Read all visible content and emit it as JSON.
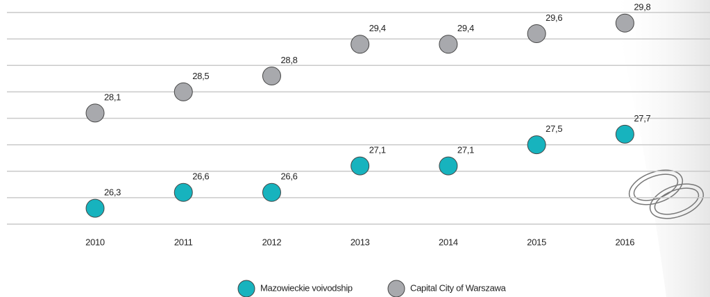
{
  "chart_data": {
    "type": "dot",
    "categories": [
      "2010",
      "2011",
      "2012",
      "2013",
      "2014",
      "2015",
      "2016"
    ],
    "series": [
      {
        "name": "Mazowieckie voivodship",
        "color": "#17b3be",
        "values": [
          26.3,
          26.6,
          26.6,
          27.1,
          27.1,
          27.5,
          27.7
        ],
        "value_labels": [
          "26,3",
          "26,6",
          "26,6",
          "27,1",
          "27,1",
          "27,5",
          "27,7"
        ]
      },
      {
        "name": "Capital City of Warszawa",
        "color": "#a8a9ad",
        "values": [
          28.1,
          28.5,
          28.8,
          29.4,
          29.4,
          29.6,
          29.8
        ],
        "value_labels": [
          "28,1",
          "28,5",
          "28,8",
          "29,4",
          "29,4",
          "29,6",
          "29,8"
        ]
      }
    ],
    "ylim": [
      26,
      30
    ],
    "yticks": [
      26,
      26.5,
      27,
      27.5,
      28,
      28.5,
      29,
      29.5,
      30
    ],
    "grid": true
  }
}
